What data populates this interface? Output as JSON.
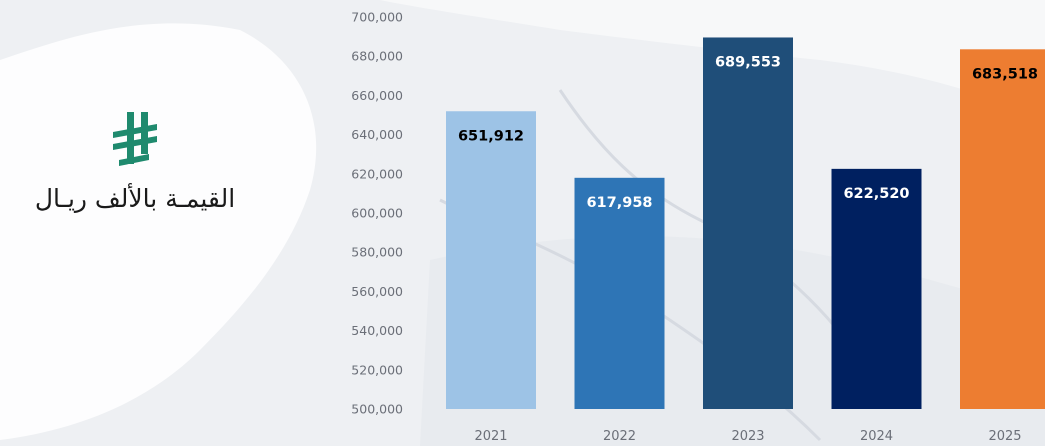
{
  "logo": {
    "icon": "riyal-symbol-icon",
    "caption": "القيمـة بالألف ريـال",
    "color": "#1f8a6e"
  },
  "chart_data": {
    "type": "bar",
    "categories": [
      "2021",
      "2022",
      "2023",
      "2024",
      "2025"
    ],
    "values": [
      651912,
      617958,
      689553,
      622520,
      683518
    ],
    "value_labels": [
      "651,912",
      "617,958",
      "689,553",
      "622,520",
      "683,518"
    ],
    "bar_colors": [
      "#9dc3e6",
      "#2e75b6",
      "#1f4e79",
      "#002060",
      "#ed7d31"
    ],
    "label_colors": [
      "#000000",
      "#ffffff",
      "#ffffff",
      "#ffffff",
      "#000000"
    ],
    "ylim": [
      500000,
      700000
    ],
    "yticks": [
      500000,
      520000,
      540000,
      560000,
      580000,
      600000,
      620000,
      640000,
      660000,
      680000,
      700000
    ],
    "ytick_labels": [
      "500,000",
      "520,000",
      "540,000",
      "560,000",
      "580,000",
      "600,000",
      "620,000",
      "640,000",
      "660,000",
      "680,000",
      "700,000"
    ],
    "grid": false,
    "title": "",
    "xlabel": "",
    "ylabel": ""
  }
}
